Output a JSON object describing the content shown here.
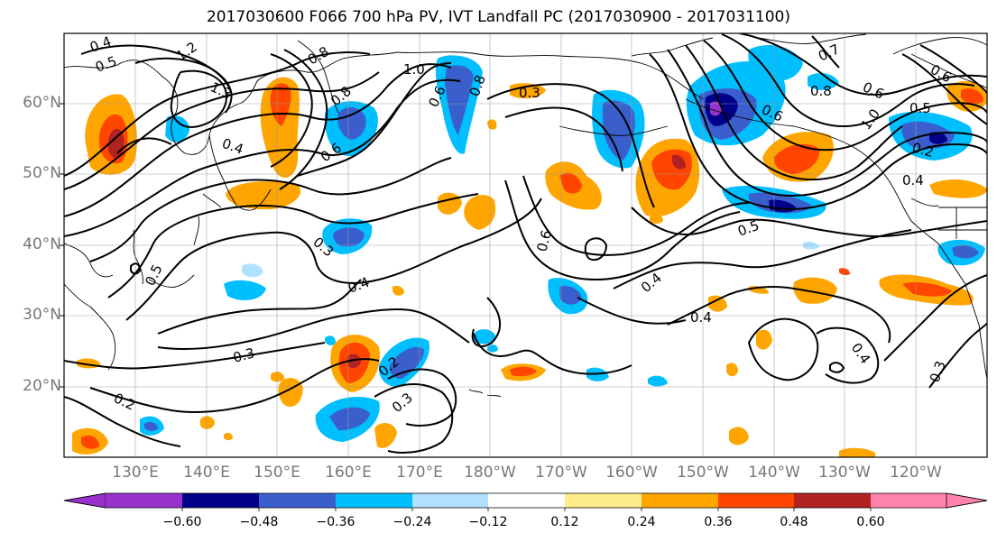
{
  "title": "2017030600 F066 700 hPa PV, IVT Landfall PC (2017030900 - 2017031100)",
  "lat_labels": [
    "60°N",
    "50°N",
    "40°N",
    "30°N",
    "20°N"
  ],
  "lon_labels": [
    "130°E",
    "140°E",
    "150°E",
    "160°E",
    "170°E",
    "180°W",
    "170°W",
    "160°W",
    "150°W",
    "140°W",
    "130°W",
    "120°W"
  ],
  "colorbar": {
    "colors": [
      "#9932cc",
      "#00008b",
      "#3a5fcd",
      "#00bfff",
      "#b0e2ff",
      "#ffffff",
      "#ffec8b",
      "#ffa500",
      "#ff4500",
      "#b22222",
      "#ff82ab"
    ],
    "tick_labels": [
      "−0.60",
      "−0.48",
      "−0.36",
      "−0.24",
      "−0.12",
      "0.12",
      "0.24",
      "0.36",
      "0.48",
      "0.60"
    ]
  },
  "contour_labels": [
    "0.4",
    "0.5",
    "1.2",
    "1.3",
    "0.8",
    "1.0",
    "0.8",
    "0.4",
    "0.6",
    "0.6",
    "0.8",
    "0.3",
    "0.7",
    "0.6",
    "0.6",
    "0.5",
    "1.0",
    "0.8",
    "0.6",
    "0.4",
    "0.2",
    "0.5",
    "0.3",
    "0.4",
    "0.6",
    "0.5",
    "0.4",
    "0.4",
    "0.3",
    "0.2",
    "0.3",
    "0.2",
    "0.4",
    "0.3"
  ]
}
